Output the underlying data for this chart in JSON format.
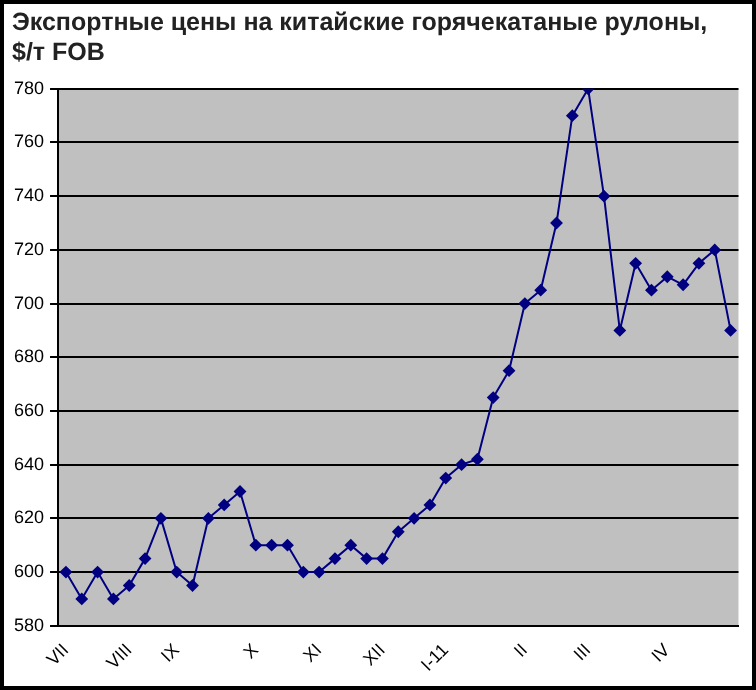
{
  "chart_data": {
    "type": "line",
    "title": "Экспортные цены на китайские горячекатаные рулоны, $/т FOB",
    "categories": [
      "VII",
      null,
      null,
      null,
      "VIII",
      null,
      null,
      "IX",
      null,
      null,
      null,
      null,
      "X",
      null,
      null,
      null,
      "XI",
      null,
      null,
      null,
      "XII",
      null,
      null,
      null,
      "I-11",
      null,
      null,
      null,
      null,
      "II",
      null,
      null,
      null,
      "III",
      null,
      null,
      null,
      null,
      "IV",
      null,
      null,
      null,
      null
    ],
    "series": [
      {
        "color": "#000080",
        "values": [
          600,
          590,
          600,
          590,
          595,
          605,
          620,
          600,
          595,
          620,
          625,
          630,
          610,
          610,
          610,
          600,
          600,
          605,
          610,
          605,
          605,
          615,
          620,
          625,
          635,
          640,
          642,
          665,
          675,
          700,
          705,
          730,
          770,
          780,
          740,
          690,
          715,
          705,
          710,
          707,
          715,
          720,
          690
        ]
      }
    ],
    "ylim": [
      580,
      780
    ],
    "yticks": [
      580,
      600,
      620,
      640,
      660,
      680,
      700,
      720,
      740,
      760,
      780
    ],
    "grid": "y",
    "legend": false,
    "marker": "diamond",
    "line_style": "solid"
  }
}
